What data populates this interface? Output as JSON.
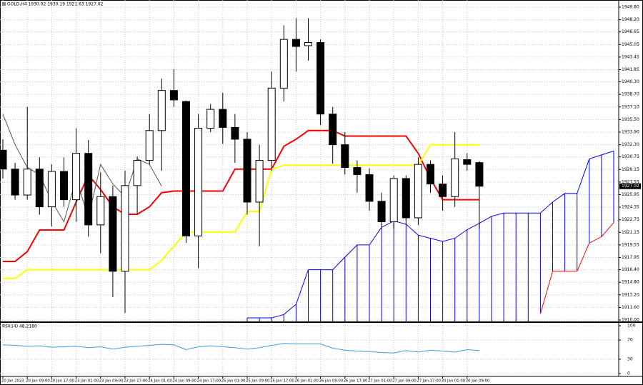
{
  "chart_data": [
    {
      "type": "candlestick",
      "title": "GOLD,H4 1930.02 1930.19 1921.63 1927.02",
      "price_label": "1927.02",
      "categories": [
        "20 Jan 2023",
        null,
        "20 Jan 09:00",
        null,
        "20 Jan 17:00",
        null,
        "23 Jan 01:00",
        null,
        "23 Jan 09:00",
        null,
        "23 Jan 17:00",
        null,
        "24 Jan 01:00",
        null,
        "24 Jan 09:00",
        null,
        "24 Jan 17:00",
        null,
        "25 Jan 01:00",
        null,
        "25 Jan 09:00",
        null,
        "25 Jan 17:00",
        null,
        "26 Jan 01:00",
        null,
        "26 Jan 09:00",
        null,
        "26 Jan 17:00",
        null,
        "27 Jan 01:00",
        null,
        "27 Jan 09:00",
        null,
        "27 Jan 17:00",
        null,
        "30 Jan 01:00",
        null,
        "30 Jan 09:00",
        null,
        null,
        null,
        null,
        null,
        null,
        null,
        null,
        null,
        null,
        null,
        null
      ],
      "open": [
        1931.6,
        1929.2,
        1925.9,
        1929.2,
        1924.4,
        1928.9,
        1925.3,
        1931.2,
        1922.1,
        1925.7,
        1916.2,
        1927.1,
        1930.3,
        1934.1,
        1939.2,
        1937.8,
        1920.7,
        1934.4,
        1936.8,
        1934.5,
        1933.0,
        1925.0,
        1930.3,
        1939.5,
        1945.7,
        1944.9,
        1945.3,
        1936.2,
        1932.3,
        1929.4,
        1928.5,
        1925.1,
        1922.5,
        1928.0,
        1923.0,
        1929.8,
        1927.3,
        1925.7,
        1930.4,
        1930.02,
        null,
        null,
        null,
        null,
        null,
        null,
        null,
        null,
        null,
        null,
        null
      ],
      "high": [
        1933.0,
        1930.0,
        1937.1,
        1930.7,
        1929.8,
        1930.7,
        1934.4,
        1932.9,
        1928.8,
        1927.1,
        1929.0,
        1930.8,
        1936.2,
        1940.7,
        1941.9,
        1937.9,
        1936.2,
        1937.5,
        1938.9,
        1936.2,
        1933.9,
        1932.3,
        1941.6,
        1947.5,
        1948.4,
        1948.4,
        1945.7,
        1937.1,
        1933.9,
        1930.3,
        1929.3,
        1926.2,
        1928.4,
        1928.4,
        1930.7,
        1930.3,
        1928.4,
        1933.9,
        1931.2,
        1930.19,
        null,
        null,
        null,
        null,
        null,
        null,
        null,
        null,
        null,
        null,
        null
      ],
      "low": [
        1928.0,
        1925.3,
        1925.3,
        1923.4,
        1921.9,
        1924.4,
        1922.5,
        1920.6,
        1918.5,
        1912.9,
        1910.9,
        1923.4,
        1929.8,
        1929.0,
        1937.1,
        1919.8,
        1916.6,
        1933.9,
        1932.4,
        1930.0,
        1923.4,
        1919.4,
        1929.0,
        1937.8,
        1941.6,
        1943.0,
        1934.8,
        1929.9,
        1928.5,
        1926.2,
        1923.9,
        1921.8,
        1921.6,
        1922.1,
        1922.1,
        1926.2,
        1923.9,
        1924.4,
        1929.0,
        1921.63,
        null,
        null,
        null,
        null,
        null,
        null,
        null,
        null,
        null,
        null,
        null
      ],
      "close": [
        1929.2,
        1925.9,
        1929.2,
        1924.4,
        1928.9,
        1925.3,
        1931.2,
        1922.1,
        1925.7,
        1916.2,
        1927.1,
        1930.3,
        1934.1,
        1939.2,
        1938.0,
        1920.7,
        1934.4,
        1936.8,
        1934.5,
        1933.0,
        1925.0,
        1930.3,
        1939.5,
        1945.7,
        1944.8,
        1945.3,
        1936.2,
        1932.3,
        1929.4,
        1928.5,
        1925.1,
        1922.5,
        1928.0,
        1923.0,
        1929.8,
        1927.3,
        1925.7,
        1930.5,
        1929.8,
        1927.02,
        null,
        null,
        null,
        null,
        null,
        null,
        null,
        null,
        null,
        null,
        null
      ],
      "up_color": "#ffffff",
      "down_color": "#000000",
      "lines": [
        {
          "color": "#ff0000",
          "width": 2,
          "values": [
            1917.45,
            1917.45,
            1918.7,
            1921.45,
            1921.45,
            1921.45,
            1925.0,
            1928.45,
            1926.6,
            1924.4,
            1923.45,
            1923.45,
            1924.4,
            1926.2,
            1926.4,
            1926.4,
            1926.4,
            1926.4,
            1926.4,
            1929.2,
            1929.2,
            1929.2,
            1929.2,
            1932.1,
            1933.0,
            1934.1,
            1934.1,
            1934.1,
            1933.4,
            1933.4,
            1933.4,
            1933.4,
            1933.4,
            1933.4,
            1931.2,
            1928.0,
            1925.3,
            1925.3,
            1925.3,
            1925.3,
            null,
            null,
            null,
            null,
            null,
            null,
            null,
            null,
            null,
            null,
            null
          ]
        },
        {
          "color": "#ffff00",
          "width": 2,
          "values": [
            1915.3,
            1915.3,
            1916.4,
            1916.4,
            1916.4,
            1916.4,
            1916.4,
            1916.4,
            1916.4,
            1916.4,
            1916.4,
            1916.4,
            1916.4,
            1917.6,
            1919.4,
            1921.2,
            1921.2,
            1921.2,
            1921.2,
            1921.2,
            1923.8,
            1923.8,
            1929.2,
            1929.7,
            1929.7,
            1929.7,
            1929.7,
            1929.7,
            1929.7,
            1929.7,
            1929.7,
            1929.7,
            1929.7,
            1929.7,
            1929.7,
            1932.3,
            1932.3,
            1932.3,
            1932.3,
            1932.3,
            null,
            null,
            null,
            null,
            null,
            null,
            null,
            null,
            null,
            null,
            null
          ]
        },
        {
          "color": "#555555",
          "width": 1,
          "values": [
            1936.2,
            1932.3,
            1929.4,
            1928.5,
            1925.1,
            1922.5,
            1928.0,
            1923.0,
            1929.8,
            1927.3,
            1925.7,
            1930.5,
            1929.8,
            1927.02,
            null,
            null,
            null,
            null,
            null,
            null,
            null,
            null,
            null,
            null,
            null,
            null,
            null,
            null,
            null,
            null,
            null,
            null,
            null,
            null,
            null,
            null,
            null,
            null,
            null,
            null,
            null,
            null,
            null,
            null,
            null,
            null,
            null,
            null,
            null,
            null,
            null
          ]
        },
        {
          "color": "#ff0000",
          "width": 1,
          "values": [
            null,
            null,
            null,
            null,
            null,
            null,
            null,
            null,
            null,
            null,
            null,
            null,
            null,
            null,
            null,
            null,
            null,
            null,
            null,
            null,
            null,
            null,
            null,
            null,
            null,
            null,
            null,
            null,
            null,
            null,
            null,
            null,
            null,
            null,
            null,
            null,
            null,
            null,
            null,
            null,
            null,
            null,
            null,
            null,
            1910.8,
            1916.2,
            1916.2,
            1916.2,
            1919.8,
            1920.6,
            1922.4
          ]
        },
        {
          "color": "#0000ff",
          "width": 1,
          "values": [
            null,
            null,
            null,
            null,
            null,
            null,
            null,
            null,
            null,
            null,
            null,
            null,
            null,
            null,
            null,
            null,
            null,
            null,
            null,
            null,
            1910.27,
            1910.27,
            1910.27,
            1910.7,
            1912.0,
            1916.4,
            1916.4,
            1916.4,
            1918.0,
            1919.55,
            1919.55,
            1921.8,
            1922.6,
            1922.2,
            1920.8,
            1920.4,
            1920.0,
            1920.4,
            1921.5,
            1922.3,
            1923.2,
            1923.6,
            1923.6,
            1923.6,
            1923.6,
            1925.0,
            1926.1,
            1926.1,
            1930.5,
            1931.0,
            1931.5
          ]
        }
      ],
      "cloud_hatch": true,
      "ylim": [
        1909.82,
        1950.71
      ],
      "yticks": [
        {
          "value": 1910.0,
          "label": "1910.00"
        },
        {
          "value": 1911.6,
          "label": "1911.60"
        },
        {
          "value": 1913.2,
          "label": "1913.20"
        },
        {
          "value": 1914.8,
          "label": "1914.80"
        },
        {
          "value": 1916.4,
          "label": "1916.40"
        },
        {
          "value": 1917.95,
          "label": "1917.95"
        },
        {
          "value": 1919.55,
          "label": "1919.55"
        },
        {
          "value": 1921.15,
          "label": "1921.15"
        },
        {
          "value": 1922.75,
          "label": "1922.75"
        },
        {
          "value": 1924.35,
          "label": "1924.35"
        },
        {
          "value": 1925.95,
          "label": "1925.95"
        },
        {
          "value": 1927.55,
          "label": "1927.55"
        },
        {
          "value": 1929.15,
          "label": "1929.15"
        },
        {
          "value": 1930.75,
          "label": "1930.75"
        },
        {
          "value": 1932.3,
          "label": "1932.30"
        },
        {
          "value": 1933.9,
          "label": "1933.90"
        },
        {
          "value": 1935.5,
          "label": "1935.50"
        },
        {
          "value": 1937.1,
          "label": "1937.10"
        },
        {
          "value": 1938.7,
          "label": "1938.70"
        },
        {
          "value": 1940.3,
          "label": "1940.30"
        },
        {
          "value": 1941.85,
          "label": "1941.85"
        },
        {
          "value": 1943.45,
          "label": "1943.45"
        },
        {
          "value": 1945.05,
          "label": "1945.05"
        },
        {
          "value": 1946.65,
          "label": "1946.65"
        },
        {
          "value": 1948.2,
          "label": "1948.20"
        },
        {
          "value": 1949.8,
          "label": "1949.80"
        }
      ],
      "grid": true
    },
    {
      "type": "line",
      "title": "RSI(14) 48.2180",
      "color": "#3d9be0",
      "values": [
        60,
        59,
        57,
        58,
        55,
        56,
        57,
        54,
        56,
        51,
        55,
        57,
        59,
        61,
        60,
        50,
        56,
        58,
        56,
        54,
        51,
        54,
        59,
        63,
        62,
        62,
        62,
        53,
        49,
        47,
        46,
        44,
        43,
        48,
        45,
        49,
        47,
        45,
        50,
        48.218
      ],
      "ylim": [
        0,
        100
      ],
      "yticks": [
        0,
        30,
        70,
        100
      ],
      "grid": true
    }
  ]
}
